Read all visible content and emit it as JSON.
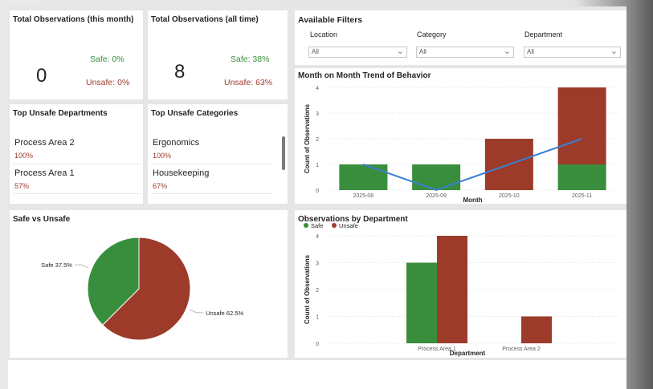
{
  "colors": {
    "safe": "#388e3c",
    "unsafe": "#9c3b2a",
    "trend": "#3a7fd0"
  },
  "kpi_month": {
    "title": "Total Observations (this month)",
    "total": "0",
    "safe": "Safe: 0%",
    "unsafe": "Unsafe: 0%"
  },
  "kpi_all": {
    "title": "Total Observations (all time)",
    "total": "8",
    "safe": "Safe: 38%",
    "unsafe": "Unsafe: 63%"
  },
  "top_departments": {
    "title": "Top Unsafe Departments",
    "items": [
      {
        "name": "Process Area 2",
        "pct": "100%"
      },
      {
        "name": "Process Area 1",
        "pct": "57%"
      }
    ]
  },
  "top_categories": {
    "title": "Top Unsafe Categories",
    "items": [
      {
        "name": "Ergonomics",
        "pct": "100%"
      },
      {
        "name": "Housekeeping",
        "pct": "67%"
      }
    ]
  },
  "filters": {
    "title": "Available Filters",
    "location": {
      "label": "Location",
      "value": "All"
    },
    "category": {
      "label": "Category",
      "value": "All"
    },
    "department": {
      "label": "Department",
      "value": "All"
    }
  },
  "chart_data": [
    {
      "type": "bar",
      "title": "Month on Month Trend of Behavior",
      "xlabel": "Month",
      "ylabel": "Count of Observations",
      "ylim": [
        0,
        4
      ],
      "yticks": [
        "0",
        "1",
        "2",
        "3",
        "4"
      ],
      "categories": [
        "2025-08",
        "2025-09",
        "2025-10",
        "2025-11"
      ],
      "stacked": true,
      "series": [
        {
          "name": "Safe",
          "values": [
            1,
            1,
            0,
            1
          ]
        },
        {
          "name": "Unsafe",
          "values": [
            0,
            0,
            2,
            3
          ]
        }
      ],
      "line": {
        "name": "Trend",
        "values": [
          1,
          0,
          1,
          2
        ]
      }
    },
    {
      "type": "pie",
      "title": "Safe vs Unsafe",
      "slices": [
        {
          "label": "Safe",
          "value": 37.5,
          "text": "Safe 37.5%"
        },
        {
          "label": "Unsafe",
          "value": 62.5,
          "text": "Unsafe 62.5%"
        }
      ]
    },
    {
      "type": "bar",
      "title": "Observations by Department",
      "xlabel": "Department",
      "ylabel": "Count of Observations",
      "ylim": [
        0,
        4
      ],
      "yticks": [
        "0",
        "1",
        "2",
        "3",
        "4"
      ],
      "categories": [
        "Process Area 1",
        "Process Area 2"
      ],
      "legend": [
        "Safe",
        "Unsafe"
      ],
      "series": [
        {
          "name": "Safe",
          "values": [
            3,
            0
          ]
        },
        {
          "name": "Unsafe",
          "values": [
            4,
            1
          ]
        }
      ]
    }
  ]
}
